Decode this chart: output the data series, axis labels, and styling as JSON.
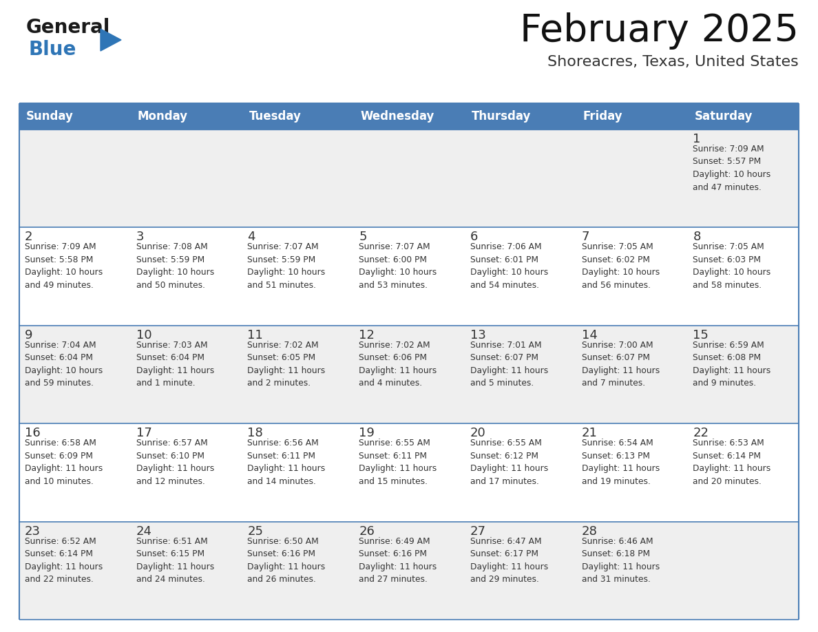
{
  "title": "February 2025",
  "subtitle": "Shoreacres, Texas, United States",
  "days_of_week": [
    "Sunday",
    "Monday",
    "Tuesday",
    "Wednesday",
    "Thursday",
    "Friday",
    "Saturday"
  ],
  "header_bg": "#4a7db5",
  "header_text": "#ffffff",
  "cell_bg_gray": "#efefef",
  "cell_bg_white": "#ffffff",
  "border_color": "#4a7db5",
  "title_color": "#111111",
  "subtitle_color": "#333333",
  "day_number_color": "#333333",
  "cell_text_color": "#333333",
  "calendar_data": [
    [
      {
        "day": null,
        "info": null
      },
      {
        "day": null,
        "info": null
      },
      {
        "day": null,
        "info": null
      },
      {
        "day": null,
        "info": null
      },
      {
        "day": null,
        "info": null
      },
      {
        "day": null,
        "info": null
      },
      {
        "day": 1,
        "info": "Sunrise: 7:09 AM\nSunset: 5:57 PM\nDaylight: 10 hours\nand 47 minutes."
      }
    ],
    [
      {
        "day": 2,
        "info": "Sunrise: 7:09 AM\nSunset: 5:58 PM\nDaylight: 10 hours\nand 49 minutes."
      },
      {
        "day": 3,
        "info": "Sunrise: 7:08 AM\nSunset: 5:59 PM\nDaylight: 10 hours\nand 50 minutes."
      },
      {
        "day": 4,
        "info": "Sunrise: 7:07 AM\nSunset: 5:59 PM\nDaylight: 10 hours\nand 51 minutes."
      },
      {
        "day": 5,
        "info": "Sunrise: 7:07 AM\nSunset: 6:00 PM\nDaylight: 10 hours\nand 53 minutes."
      },
      {
        "day": 6,
        "info": "Sunrise: 7:06 AM\nSunset: 6:01 PM\nDaylight: 10 hours\nand 54 minutes."
      },
      {
        "day": 7,
        "info": "Sunrise: 7:05 AM\nSunset: 6:02 PM\nDaylight: 10 hours\nand 56 minutes."
      },
      {
        "day": 8,
        "info": "Sunrise: 7:05 AM\nSunset: 6:03 PM\nDaylight: 10 hours\nand 58 minutes."
      }
    ],
    [
      {
        "day": 9,
        "info": "Sunrise: 7:04 AM\nSunset: 6:04 PM\nDaylight: 10 hours\nand 59 minutes."
      },
      {
        "day": 10,
        "info": "Sunrise: 7:03 AM\nSunset: 6:04 PM\nDaylight: 11 hours\nand 1 minute."
      },
      {
        "day": 11,
        "info": "Sunrise: 7:02 AM\nSunset: 6:05 PM\nDaylight: 11 hours\nand 2 minutes."
      },
      {
        "day": 12,
        "info": "Sunrise: 7:02 AM\nSunset: 6:06 PM\nDaylight: 11 hours\nand 4 minutes."
      },
      {
        "day": 13,
        "info": "Sunrise: 7:01 AM\nSunset: 6:07 PM\nDaylight: 11 hours\nand 5 minutes."
      },
      {
        "day": 14,
        "info": "Sunrise: 7:00 AM\nSunset: 6:07 PM\nDaylight: 11 hours\nand 7 minutes."
      },
      {
        "day": 15,
        "info": "Sunrise: 6:59 AM\nSunset: 6:08 PM\nDaylight: 11 hours\nand 9 minutes."
      }
    ],
    [
      {
        "day": 16,
        "info": "Sunrise: 6:58 AM\nSunset: 6:09 PM\nDaylight: 11 hours\nand 10 minutes."
      },
      {
        "day": 17,
        "info": "Sunrise: 6:57 AM\nSunset: 6:10 PM\nDaylight: 11 hours\nand 12 minutes."
      },
      {
        "day": 18,
        "info": "Sunrise: 6:56 AM\nSunset: 6:11 PM\nDaylight: 11 hours\nand 14 minutes."
      },
      {
        "day": 19,
        "info": "Sunrise: 6:55 AM\nSunset: 6:11 PM\nDaylight: 11 hours\nand 15 minutes."
      },
      {
        "day": 20,
        "info": "Sunrise: 6:55 AM\nSunset: 6:12 PM\nDaylight: 11 hours\nand 17 minutes."
      },
      {
        "day": 21,
        "info": "Sunrise: 6:54 AM\nSunset: 6:13 PM\nDaylight: 11 hours\nand 19 minutes."
      },
      {
        "day": 22,
        "info": "Sunrise: 6:53 AM\nSunset: 6:14 PM\nDaylight: 11 hours\nand 20 minutes."
      }
    ],
    [
      {
        "day": 23,
        "info": "Sunrise: 6:52 AM\nSunset: 6:14 PM\nDaylight: 11 hours\nand 22 minutes."
      },
      {
        "day": 24,
        "info": "Sunrise: 6:51 AM\nSunset: 6:15 PM\nDaylight: 11 hours\nand 24 minutes."
      },
      {
        "day": 25,
        "info": "Sunrise: 6:50 AM\nSunset: 6:16 PM\nDaylight: 11 hours\nand 26 minutes."
      },
      {
        "day": 26,
        "info": "Sunrise: 6:49 AM\nSunset: 6:16 PM\nDaylight: 11 hours\nand 27 minutes."
      },
      {
        "day": 27,
        "info": "Sunrise: 6:47 AM\nSunset: 6:17 PM\nDaylight: 11 hours\nand 29 minutes."
      },
      {
        "day": 28,
        "info": "Sunrise: 6:46 AM\nSunset: 6:18 PM\nDaylight: 11 hours\nand 31 minutes."
      },
      {
        "day": null,
        "info": null
      }
    ]
  ],
  "logo_text_general": "General",
  "logo_text_blue": "Blue",
  "logo_color_general": "#1a1a1a",
  "logo_color_blue": "#2e75b6",
  "logo_triangle_color": "#2e75b6",
  "fig_width": 1188,
  "fig_height": 918
}
